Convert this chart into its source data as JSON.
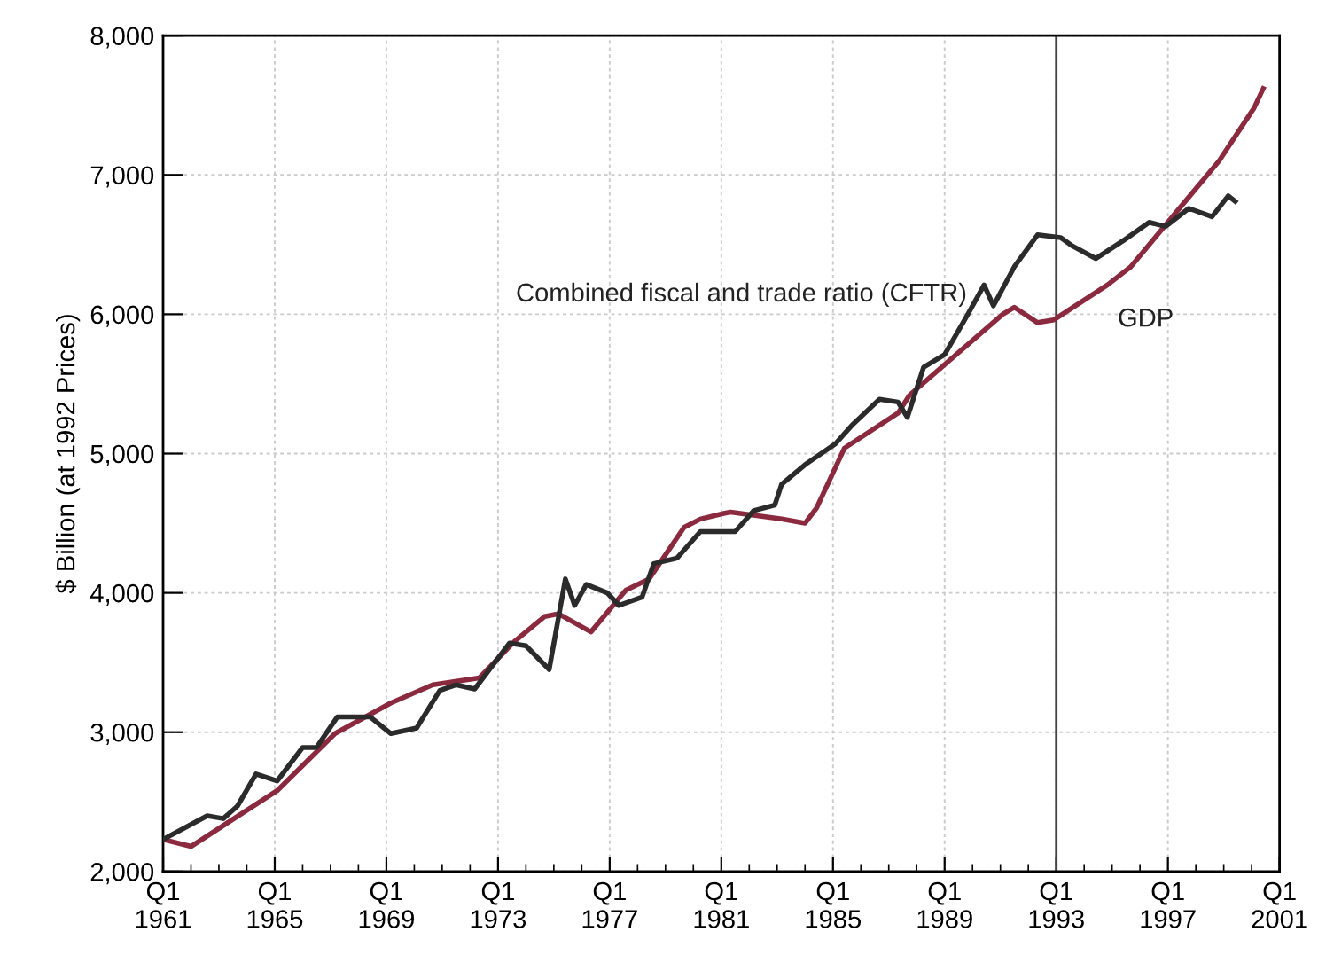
{
  "chart_data": {
    "type": "line",
    "ylabel": "$ Billion (at 1992 Prices)",
    "xlim": [
      "1961-01",
      "2001-01"
    ],
    "ylim": [
      2000,
      8000
    ],
    "xticks": [
      {
        "value": "1961-01",
        "label": "Q1 1961"
      },
      {
        "value": "1965-01",
        "label": "Q1 1965"
      },
      {
        "value": "1969-01",
        "label": "Q1 1969"
      },
      {
        "value": "1973-01",
        "label": "Q1 1973"
      },
      {
        "value": "1977-01",
        "label": "Q1 1977"
      },
      {
        "value": "1981-01",
        "label": "Q1 1981"
      },
      {
        "value": "1985-01",
        "label": "Q1 1985"
      },
      {
        "value": "1989-01",
        "label": "Q1 1989"
      },
      {
        "value": "1993-01",
        "label": "Q1 1993"
      },
      {
        "value": "1997-01",
        "label": "Q1 1997"
      },
      {
        "value": "2001-01",
        "label": "Q1 2001"
      }
    ],
    "yticks": [
      {
        "value": 2000,
        "label": "2,000"
      },
      {
        "value": 3000,
        "label": "3,000"
      },
      {
        "value": 4000,
        "label": "4,000"
      },
      {
        "value": 5000,
        "label": "5,000"
      },
      {
        "value": 6000,
        "label": "6,000"
      },
      {
        "value": 7000,
        "label": "7,000"
      },
      {
        "value": 8000,
        "label": "8,000"
      }
    ],
    "grid": true,
    "legend": false,
    "marker": "none",
    "line_style": "solid",
    "ref_lines": [
      {
        "axis": "x",
        "value": "1993-01",
        "color": "#444444"
      }
    ],
    "series": [
      {
        "name": "Combined fiscal and trade ratio (CFTR)",
        "color": "#2b2b2b",
        "x": [
          "1961-01",
          "1962-08",
          "1963-03",
          "1963-09",
          "1964-05",
          "1965-02",
          "1966-01",
          "1966-07",
          "1967-04",
          "1968-06",
          "1969-03",
          "1970-02",
          "1970-12",
          "1971-07",
          "1972-03",
          "1973-06",
          "1974-01",
          "1974-11",
          "1975-06",
          "1975-10",
          "1976-03",
          "1976-12",
          "1977-05",
          "1978-03",
          "1978-08",
          "1979-06",
          "1980-04",
          "1981-07",
          "1982-03",
          "1982-12",
          "1983-03",
          "1984-01",
          "1985-02",
          "1985-09",
          "1986-09",
          "1987-05",
          "1987-09",
          "1988-04",
          "1989-01",
          "1989-11",
          "1990-06",
          "1990-10",
          "1991-07",
          "1992-05",
          "1993-03",
          "1993-08",
          "1994-06",
          "1995-06",
          "1996-05",
          "1996-12",
          "1997-10",
          "1998-08",
          "1999-03",
          "1999-06"
        ],
        "values": [
          2230,
          2400,
          2380,
          2470,
          2700,
          2650,
          2890,
          2890,
          3110,
          3110,
          2990,
          3030,
          3300,
          3340,
          3310,
          3640,
          3620,
          3450,
          4100,
          3910,
          4060,
          4000,
          3910,
          3970,
          4210,
          4250,
          4440,
          4440,
          4590,
          4630,
          4780,
          4920,
          5070,
          5200,
          5390,
          5370,
          5260,
          5620,
          5710,
          6000,
          6210,
          6060,
          6340,
          6570,
          6550,
          6490,
          6400,
          6530,
          6660,
          6630,
          6760,
          6700,
          6850,
          6810
        ]
      },
      {
        "name": "GDP",
        "color": "#8b2a3f",
        "x": [
          "1961-01",
          "1962-01",
          "1965-02",
          "1967-03",
          "1969-03",
          "1970-09",
          "1972-05",
          "1973-08",
          "1974-09",
          "1975-03",
          "1976-05",
          "1977-08",
          "1978-06",
          "1979-09",
          "1980-04",
          "1981-02",
          "1981-05",
          "1983-03",
          "1984-01",
          "1984-06",
          "1985-06",
          "1987-05",
          "1987-10",
          "1989-06",
          "1991-02",
          "1991-07",
          "1992-05",
          "1992-12",
          "1994-11",
          "1995-09",
          "1997-05",
          "1998-11",
          "2000-02",
          "2000-06"
        ],
        "values": [
          2230,
          2180,
          2580,
          2990,
          3210,
          3340,
          3390,
          3650,
          3830,
          3850,
          3720,
          4020,
          4100,
          4470,
          4530,
          4570,
          4580,
          4530,
          4500,
          4610,
          5040,
          5290,
          5420,
          5710,
          6000,
          6050,
          5940,
          5960,
          6210,
          6340,
          6740,
          7100,
          7480,
          7620
        ]
      }
    ]
  }
}
